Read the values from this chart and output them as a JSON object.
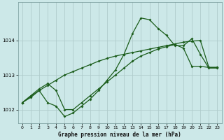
{
  "title": "Graphe pression niveau de la mer (hPa)",
  "background_color": "#cce8e8",
  "line_color": "#1a5c1a",
  "grid_color": "#b0cccc",
  "xlim": [
    -0.5,
    23.5
  ],
  "ylim": [
    1011.6,
    1015.1
  ],
  "yticks": [
    1012,
    1013,
    1014
  ],
  "xticks": [
    0,
    1,
    2,
    3,
    4,
    5,
    6,
    7,
    8,
    9,
    10,
    11,
    12,
    13,
    14,
    15,
    16,
    17,
    18,
    19,
    20,
    21,
    22,
    23
  ],
  "hours": [
    0,
    1,
    2,
    3,
    4,
    5,
    6,
    7,
    8,
    9,
    10,
    11,
    12,
    13,
    14,
    15,
    16,
    17,
    18,
    19,
    20,
    21,
    22,
    23
  ],
  "line_curvy": [
    1012.2,
    1012.35,
    1012.55,
    1012.2,
    1012.1,
    1011.8,
    1011.9,
    1012.1,
    1012.3,
    1012.55,
    1012.85,
    1013.15,
    1013.6,
    1014.2,
    1014.65,
    1014.6,
    1014.35,
    1014.15,
    1013.85,
    1013.85,
    1014.05,
    1013.6,
    1013.2,
    1013.2
  ],
  "line_upper": [
    1012.2,
    1012.4,
    1012.6,
    1012.75,
    1012.55,
    1012.0,
    1012.0,
    1012.2,
    1012.4,
    1012.6,
    1012.8,
    1013.0,
    1013.2,
    1013.4,
    1013.55,
    1013.65,
    1013.75,
    1013.82,
    1013.88,
    1013.78,
    1013.25,
    1013.25,
    1013.22,
    1013.22
  ],
  "line_lower": [
    1012.2,
    1012.38,
    1012.55,
    1012.7,
    1012.85,
    1013.0,
    1013.1,
    1013.2,
    1013.3,
    1013.4,
    1013.48,
    1013.55,
    1013.6,
    1013.65,
    1013.7,
    1013.75,
    1013.8,
    1013.85,
    1013.9,
    1013.95,
    1013.98,
    1014.0,
    1013.22,
    1013.22
  ]
}
